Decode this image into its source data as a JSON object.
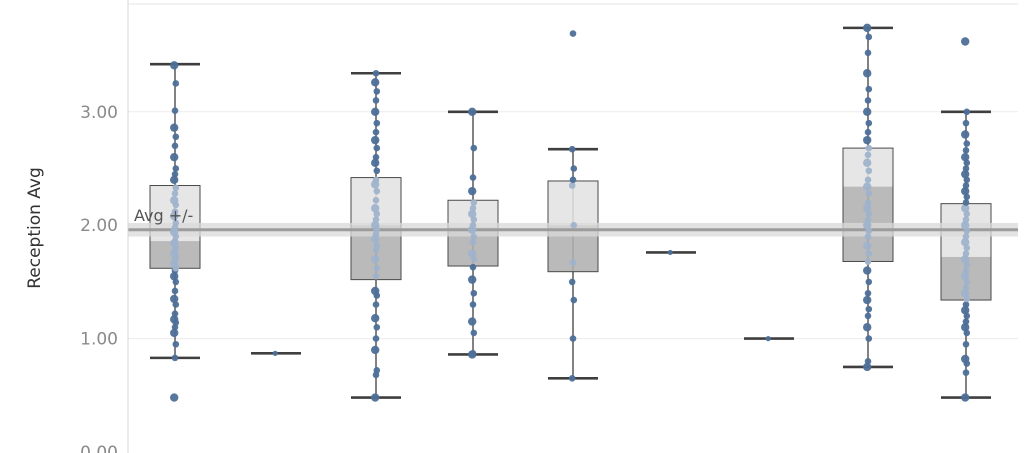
{
  "chart_data": {
    "type": "boxplot",
    "ylabel": "Reception Avg",
    "ylim": [
      0,
      3.8
    ],
    "yticks": [
      {
        "value": 0,
        "label": "0.00"
      },
      {
        "value": 1,
        "label": "1.00"
      },
      {
        "value": 2,
        "label": "2.00"
      },
      {
        "value": 3,
        "label": "3.00"
      }
    ],
    "grid": true,
    "reference_band": {
      "label": "Avg +/-",
      "value": 1.96,
      "lower": 1.9,
      "upper": 2.02
    },
    "colors": {
      "point": "#4e6f98",
      "point_light": "#9fb3cc",
      "whisker": "#3f3f3f",
      "box_upper": "#e2e2e2",
      "box_lower": "#b0b0b0",
      "band": "#dadada",
      "ref_line": "#9c9c9c",
      "grid": "#ececec"
    },
    "series": [
      {
        "min": 0.83,
        "q1": 1.62,
        "median": 1.86,
        "q3": 2.35,
        "max": 3.42,
        "points": [
          0.48,
          0.83,
          0.95,
          1.05,
          1.1,
          1.14,
          1.17,
          1.22,
          1.3,
          1.35,
          1.42,
          1.5,
          1.55,
          1.6,
          1.62,
          1.66,
          1.7,
          1.72,
          1.75,
          1.78,
          1.8,
          1.84,
          1.86,
          1.9,
          1.94,
          1.98,
          2.02,
          2.08,
          2.12,
          2.18,
          2.22,
          2.28,
          2.33,
          2.4,
          2.45,
          2.5,
          2.6,
          2.7,
          2.78,
          2.86,
          3.01,
          3.25,
          3.41
        ]
      },
      {
        "min": 0.87,
        "q1": 0.87,
        "median": 0.87,
        "q3": 0.87,
        "max": 0.87,
        "points": [
          0.87
        ]
      },
      {
        "min": 0.48,
        "q1": 1.52,
        "median": 2.0,
        "q3": 2.42,
        "max": 3.34,
        "points": [
          0.48,
          0.68,
          0.72,
          0.9,
          1.0,
          1.1,
          1.18,
          1.3,
          1.38,
          1.42,
          1.55,
          1.62,
          1.7,
          1.78,
          1.82,
          1.88,
          1.92,
          1.96,
          2.0,
          2.05,
          2.1,
          2.15,
          2.22,
          2.3,
          2.36,
          2.4,
          2.48,
          2.55,
          2.6,
          2.68,
          2.75,
          2.82,
          2.9,
          3.0,
          3.1,
          3.18,
          3.26,
          3.34
        ]
      },
      {
        "min": 0.86,
        "q1": 1.64,
        "median": 1.98,
        "q3": 2.22,
        "max": 3.0,
        "points": [
          0.86,
          0.87,
          1.05,
          1.15,
          1.3,
          1.4,
          1.52,
          1.63,
          1.7,
          1.75,
          1.85,
          1.9,
          1.96,
          2.0,
          2.05,
          2.1,
          2.15,
          2.2,
          2.3,
          2.42,
          2.68,
          3.0
        ]
      },
      {
        "min": 0.65,
        "q1": 1.59,
        "median": 2.0,
        "q3": 2.39,
        "max": 2.67,
        "points": [
          0.65,
          1.0,
          1.34,
          1.5,
          1.67,
          2.0,
          2.35,
          2.4,
          2.5,
          2.67,
          3.69
        ]
      },
      {
        "min": 1.76,
        "q1": 1.76,
        "median": 1.76,
        "q3": 1.76,
        "max": 1.76,
        "points": [
          1.76
        ]
      },
      {
        "min": 1.0,
        "q1": 1.0,
        "median": 1.0,
        "q3": 1.0,
        "max": 1.0,
        "points": [
          1.0
        ]
      },
      {
        "min": 0.75,
        "q1": 1.68,
        "median": 2.34,
        "q3": 2.68,
        "max": 3.74,
        "points": [
          0.75,
          0.8,
          1.0,
          1.1,
          1.2,
          1.26,
          1.34,
          1.4,
          1.5,
          1.6,
          1.68,
          1.75,
          1.82,
          1.9,
          1.95,
          2.0,
          2.05,
          2.1,
          2.15,
          2.2,
          2.28,
          2.34,
          2.4,
          2.48,
          2.55,
          2.62,
          2.68,
          2.75,
          2.82,
          2.9,
          3.0,
          3.1,
          3.2,
          3.34,
          3.52,
          3.66,
          3.74
        ]
      },
      {
        "min": 0.48,
        "q1": 1.34,
        "median": 1.72,
        "q3": 2.19,
        "max": 3.0,
        "points": [
          0.48,
          0.7,
          0.78,
          0.82,
          0.95,
          1.05,
          1.1,
          1.15,
          1.2,
          1.25,
          1.3,
          1.35,
          1.4,
          1.45,
          1.5,
          1.55,
          1.6,
          1.65,
          1.7,
          1.75,
          1.8,
          1.85,
          1.9,
          1.95,
          2.0,
          2.05,
          2.1,
          2.15,
          2.2,
          2.25,
          2.3,
          2.35,
          2.4,
          2.45,
          2.5,
          2.55,
          2.6,
          2.66,
          2.72,
          2.8,
          2.9,
          3.0,
          3.62
        ]
      }
    ]
  }
}
